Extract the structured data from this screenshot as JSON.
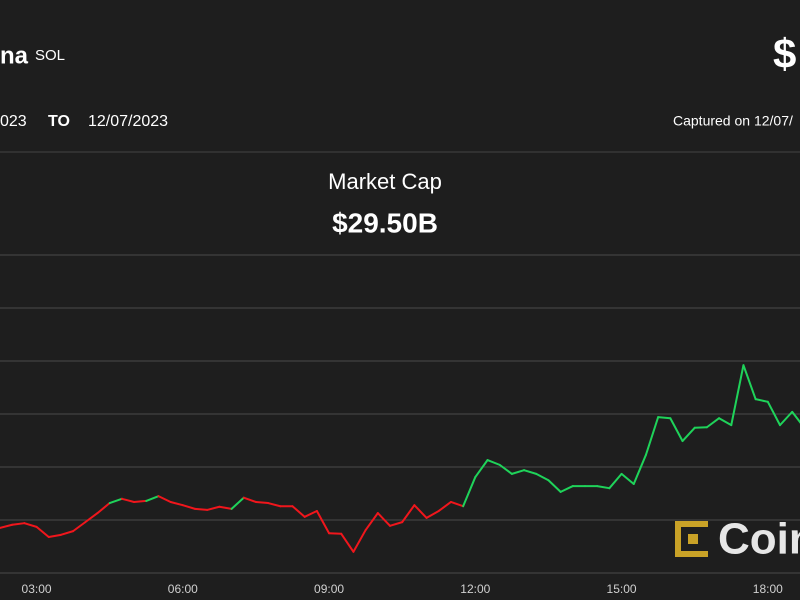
{
  "header": {
    "name": "na",
    "symbol": "SOL",
    "price": "$",
    "from": "023",
    "to_label": "TO",
    "to": "12/07/2023",
    "captured": "Captured on 12/07/"
  },
  "chart_data": {
    "type": "line",
    "title": "Market Cap",
    "subtitle": "$29.50B",
    "x": [
      2.25,
      2.5,
      2.75,
      3,
      3.25,
      3.5,
      3.75,
      4,
      4.25,
      4.5,
      4.75,
      5,
      5.25,
      5.5,
      5.75,
      6,
      6.25,
      6.5,
      6.75,
      7,
      7.25,
      7.5,
      7.75,
      8,
      8.25,
      8.5,
      8.75,
      9,
      9.25,
      9.5,
      9.75,
      10,
      10.25,
      10.5,
      10.75,
      11,
      11.25,
      11.5,
      11.75,
      12,
      12.25,
      12.5,
      12.75,
      13,
      13.25,
      13.5,
      13.75,
      14,
      14.25,
      14.5,
      14.75,
      15,
      15.25,
      15.5,
      15.75,
      16,
      16.25,
      16.5,
      16.75,
      17,
      17.25,
      17.5,
      17.75,
      18,
      18.25,
      18.5,
      18.75
    ],
    "series": [
      {
        "name": "Market Cap",
        "values": [
          0.85,
          0.91,
          0.94,
          0.87,
          0.68,
          0.72,
          0.79,
          0.96,
          1.13,
          1.32,
          1.4,
          1.34,
          1.36,
          1.45,
          1.34,
          1.28,
          1.21,
          1.19,
          1.25,
          1.21,
          1.42,
          1.34,
          1.32,
          1.26,
          1.26,
          1.06,
          1.17,
          0.75,
          0.74,
          0.4,
          0.81,
          1.13,
          0.89,
          0.96,
          1.28,
          1.04,
          1.17,
          1.34,
          1.26,
          1.81,
          2.13,
          2.04,
          1.87,
          1.94,
          1.87,
          1.75,
          1.53,
          1.64,
          1.64,
          1.64,
          1.6,
          1.87,
          1.68,
          2.23,
          2.94,
          2.92,
          2.49,
          2.74,
          2.75,
          2.92,
          2.79,
          3.92,
          3.28,
          3.23,
          2.79,
          3.04,
          2.74
        ],
        "colors": [
          "#f0161c",
          "#f0161c",
          "#f0161c",
          "#f0161c",
          "#f0161c",
          "#f0161c",
          "#f0161c",
          "#f0161c",
          "#f0161c",
          "#f0161c",
          "#1fd35a",
          "#f0161c",
          "#f0161c",
          "#1fd35a",
          "#f0161c",
          "#f0161c",
          "#f0161c",
          "#f0161c",
          "#f0161c",
          "#f0161c",
          "#1fd35a",
          "#f0161c",
          "#f0161c",
          "#f0161c",
          "#f0161c",
          "#f0161c",
          "#f0161c",
          "#f0161c",
          "#f0161c",
          "#f0161c",
          "#f0161c",
          "#f0161c",
          "#f0161c",
          "#f0161c",
          "#f0161c",
          "#f0161c",
          "#f0161c",
          "#f0161c",
          "#f0161c",
          "#1fd35a",
          "#1fd35a",
          "#1fd35a",
          "#1fd35a",
          "#1fd35a",
          "#1fd35a",
          "#1fd35a",
          "#1fd35a",
          "#1fd35a",
          "#1fd35a",
          "#1fd35a",
          "#1fd35a",
          "#1fd35a",
          "#1fd35a",
          "#1fd35a",
          "#1fd35a",
          "#1fd35a",
          "#1fd35a",
          "#1fd35a",
          "#1fd35a",
          "#1fd35a",
          "#1fd35a",
          "#1fd35a",
          "#1fd35a",
          "#1fd35a",
          "#1fd35a",
          "#1fd35a",
          "#1fd35a"
        ]
      }
    ],
    "xlim": [
      2.25,
      18.66
    ],
    "xticks": [
      {
        "value": 3,
        "label": "03:00"
      },
      {
        "value": 6,
        "label": "06:00"
      },
      {
        "value": 9,
        "label": "09:00"
      },
      {
        "value": 12,
        "label": "12:00"
      },
      {
        "value": 15,
        "label": "15:00"
      },
      {
        "value": 18,
        "label": "18:00"
      }
    ],
    "ylim": [
      0,
      6
    ],
    "yticks": [
      0,
      1,
      2,
      3,
      4,
      5,
      6
    ],
    "grid": true,
    "logo": "Coin"
  }
}
